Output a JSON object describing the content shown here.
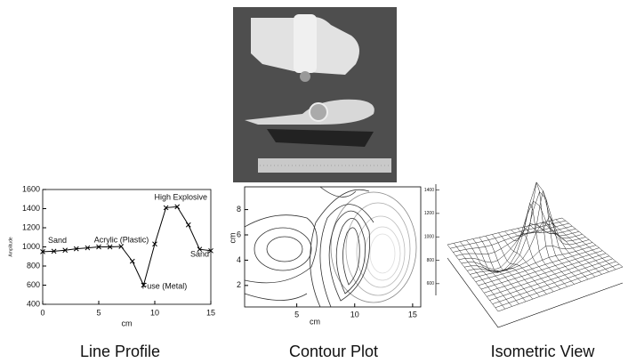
{
  "chart_data": [
    {
      "type": "line",
      "title": "Line Profile",
      "x": [
        0,
        1,
        2,
        3,
        4,
        5,
        6,
        7,
        8,
        9,
        10,
        11,
        12,
        13,
        14,
        15
      ],
      "values": [
        950,
        955,
        965,
        980,
        990,
        1000,
        1000,
        1005,
        850,
        600,
        1030,
        1410,
        1420,
        1230,
        975,
        960
      ],
      "xlim": [
        0,
        15
      ],
      "xticks": [
        0,
        5,
        10,
        15
      ],
      "ylim": [
        400,
        1600
      ],
      "yticks": [
        400,
        600,
        800,
        1000,
        1200,
        1400,
        1600
      ],
      "x_label": "cm",
      "y_label": "Amplitude",
      "annotations": [
        "Sand",
        "Acrylic (Plastic)",
        "High Explosive",
        "Fuse (Metal)",
        "Sand"
      ],
      "color": "#000000"
    },
    {
      "type": "contour",
      "title": "Contour Plot",
      "xlim": [
        0.5,
        15.7
      ],
      "xticks": [
        5,
        10,
        15
      ],
      "ylim": [
        0.3,
        9.8
      ],
      "yticks": [
        2,
        4,
        6,
        8
      ],
      "x_label": "cm",
      "y_label": "cm"
    },
    {
      "type": "surface",
      "title": "Isometric View",
      "zlim": [
        500,
        1450
      ],
      "zticks": [
        600,
        800,
        1000,
        1200,
        1400
      ]
    }
  ]
}
